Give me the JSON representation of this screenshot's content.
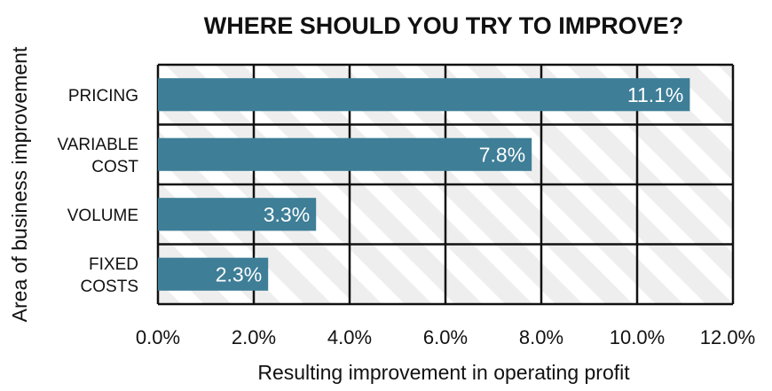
{
  "chart_data": {
    "type": "bar",
    "orientation": "horizontal",
    "title": "WHERE SHOULD YOU TRY TO IMPROVE?",
    "xlabel": "Resulting improvement in operating profit",
    "ylabel": "Area of business improvement",
    "categories": [
      [
        "PRICING"
      ],
      [
        "VARIABLE",
        "COST"
      ],
      [
        "VOLUME"
      ],
      [
        "FIXED",
        "COSTS"
      ]
    ],
    "values": [
      11.1,
      7.8,
      3.3,
      2.3
    ],
    "value_labels": [
      "11.1%",
      "7.8%",
      "3.3%",
      "2.3%"
    ],
    "xlim": [
      0,
      12
    ],
    "xticks": [
      0,
      2,
      4,
      6,
      8,
      10,
      12
    ],
    "xtick_labels": [
      "0.0%",
      "2.0%",
      "4.0%",
      "6.0%",
      "8.0%",
      "10.0%",
      "12.0%"
    ],
    "grid": true,
    "background": "diagonal-stripes",
    "colors": {
      "bar": "#3e7e97",
      "stripe_light": "#eeeeee",
      "stripe_dark": "#ffffff",
      "grid": "#111111",
      "text": "#111111",
      "value_text": "#ffffff"
    }
  }
}
